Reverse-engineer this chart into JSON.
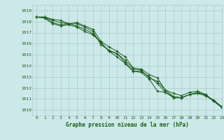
{
  "title": "Graphe pression niveau de la mer (hPa)",
  "bg_color": "#cce8e8",
  "grid_color": "#aacccc",
  "line_color": "#1a5e1a",
  "marker_color": "#1a5e1a",
  "xlim": [
    -0.5,
    23
  ],
  "ylim": [
    1009.5,
    1019.5
  ],
  "yticks": [
    1010,
    1011,
    1012,
    1013,
    1014,
    1015,
    1016,
    1017,
    1018,
    1019
  ],
  "xticks": [
    0,
    1,
    2,
    3,
    4,
    5,
    6,
    7,
    8,
    9,
    10,
    11,
    12,
    13,
    14,
    15,
    16,
    17,
    18,
    19,
    20,
    21,
    22,
    23
  ],
  "series": [
    [
      1018.4,
      1018.4,
      1018.2,
      1018.1,
      1017.8,
      1017.9,
      1017.6,
      1017.3,
      1016.2,
      1015.7,
      1015.3,
      1014.8,
      1013.8,
      1013.7,
      1013.2,
      1012.9,
      1011.8,
      1011.5,
      1011.3,
      1011.6,
      1011.7,
      1011.4,
      1010.8,
      1010.2
    ],
    [
      1018.4,
      1018.4,
      1018.1,
      1017.9,
      1017.8,
      1017.8,
      1017.5,
      1017.1,
      1015.9,
      1015.4,
      1015.1,
      1014.5,
      1013.7,
      1013.6,
      1012.9,
      1012.6,
      1011.8,
      1011.2,
      1011.1,
      1011.4,
      1011.6,
      1011.4,
      1010.8,
      1010.3
    ],
    [
      1018.4,
      1018.4,
      1017.9,
      1017.7,
      1017.8,
      1017.6,
      1017.3,
      1016.9,
      1016.1,
      1015.3,
      1015.1,
      1014.3,
      1013.5,
      1013.5,
      1013.0,
      1012.4,
      1011.6,
      1011.2,
      1011.1,
      1011.4,
      1011.5,
      1011.3,
      1010.9,
      1010.3
    ],
    [
      1018.4,
      1018.3,
      1017.8,
      1017.6,
      1017.7,
      1017.5,
      1017.1,
      1016.8,
      1016.1,
      1015.3,
      1014.8,
      1014.2,
      1013.5,
      1013.4,
      1012.8,
      1011.7,
      1011.6,
      1011.1,
      1011.1,
      1011.4,
      1011.5,
      1011.3,
      1010.8,
      1010.3
    ]
  ]
}
